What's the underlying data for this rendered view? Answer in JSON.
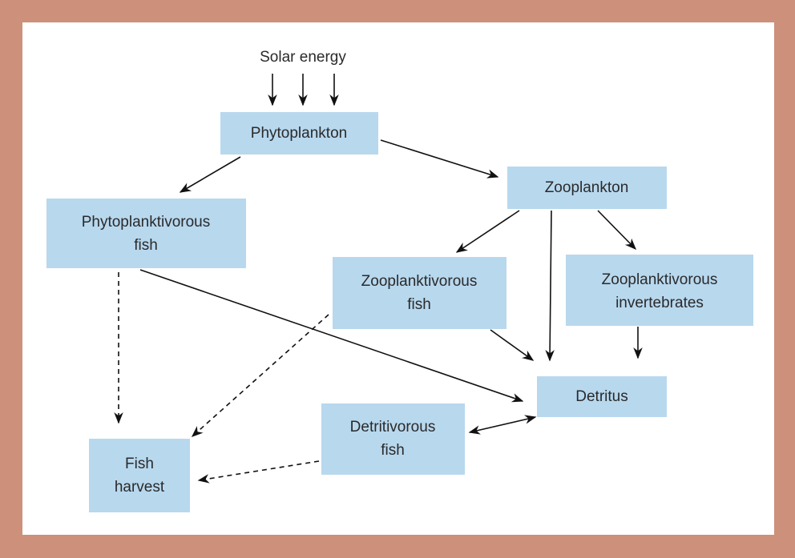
{
  "title": "Solar energy",
  "nodes": [
    {
      "lines": [
        "Phytoplankton"
      ]
    },
    {
      "lines": [
        "Zooplankton"
      ]
    },
    {
      "lines": [
        "Phytoplanktivorous",
        "fish"
      ]
    },
    {
      "lines": [
        "Zooplanktivorous",
        "fish"
      ]
    },
    {
      "lines": [
        "Zooplanktivorous",
        "invertebrates"
      ]
    },
    {
      "lines": [
        "Detritus"
      ]
    },
    {
      "lines": [
        "Detritivorous",
        "fish"
      ]
    },
    {
      "lines": [
        "Fish",
        "harvest"
      ]
    }
  ]
}
